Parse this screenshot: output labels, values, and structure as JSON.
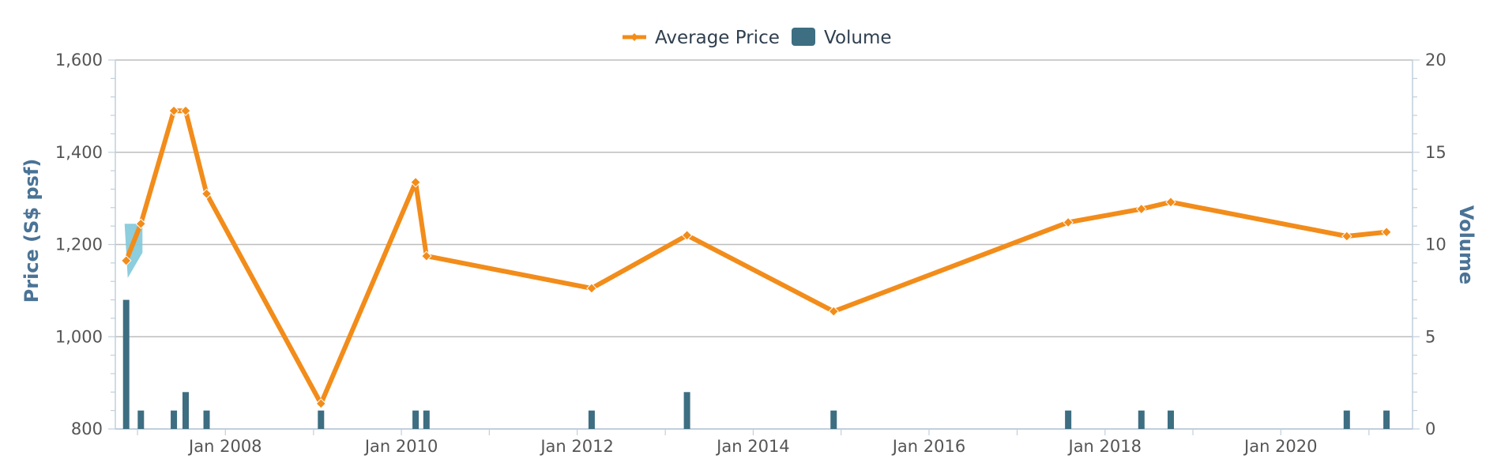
{
  "chart_data": {
    "type": "line",
    "legend": {
      "placement": "top-center",
      "items": [
        {
          "name": "Average Price",
          "marker": "line"
        },
        {
          "name": "Volume",
          "marker": "bar"
        }
      ]
    },
    "y_left": {
      "title": "Price (S$ psf)",
      "ylim": [
        800,
        1600
      ],
      "ticks": [
        "800",
        "1,000",
        "1,200",
        "1,400",
        "1,600"
      ]
    },
    "y_right": {
      "title": "Volume",
      "ylim": [
        0,
        20
      ],
      "ticks": [
        "0",
        "5",
        "10",
        "15",
        "20"
      ]
    },
    "x_axis": {
      "ticks": [
        "Jan 2008",
        "Jan 2010",
        "Jan 2012",
        "Jan 2014",
        "Jan 2016",
        "Jan 2018",
        "Jan 2020"
      ]
    },
    "grid": true,
    "colors": {
      "price": "#f28c1a",
      "volume": "#3d6e82",
      "highlight": "#7fc8da",
      "grid": "#bdbdbd",
      "axis": "#c0cfdc"
    },
    "series": [
      {
        "name": "Average Price",
        "type": "line",
        "axis": "left",
        "points": [
          [
            "2006-11-15",
            1165
          ],
          [
            "2007-01-15",
            1245
          ],
          [
            "2007-06-01",
            1490
          ],
          [
            "2007-07-20",
            1490
          ],
          [
            "2007-10-15",
            1310
          ],
          [
            "2009-02-01",
            855
          ],
          [
            "2010-03-01",
            1335
          ],
          [
            "2010-04-15",
            1175
          ],
          [
            "2012-03-01",
            1105
          ],
          [
            "2013-04-01",
            1220
          ],
          [
            "2014-12-01",
            1055
          ],
          [
            "2017-08-01",
            1248
          ],
          [
            "2018-06-01",
            1277
          ],
          [
            "2018-10-01",
            1292
          ],
          [
            "2020-10-01",
            1218
          ],
          [
            "2021-03-15",
            1227
          ]
        ]
      },
      {
        "name": "Volume",
        "type": "bar",
        "axis": "right",
        "points": [
          [
            "2006-11-15",
            7
          ],
          [
            "2007-01-15",
            1
          ],
          [
            "2007-06-01",
            1
          ],
          [
            "2007-07-20",
            2
          ],
          [
            "2007-10-15",
            1
          ],
          [
            "2009-02-01",
            1
          ],
          [
            "2010-03-01",
            1
          ],
          [
            "2010-04-15",
            1
          ],
          [
            "2012-03-01",
            1
          ],
          [
            "2013-04-01",
            2
          ],
          [
            "2014-12-01",
            1
          ],
          [
            "2017-08-01",
            1
          ],
          [
            "2018-06-01",
            1
          ],
          [
            "2018-10-01",
            1
          ],
          [
            "2020-10-01",
            1
          ],
          [
            "2021-03-15",
            1
          ]
        ]
      }
    ]
  }
}
